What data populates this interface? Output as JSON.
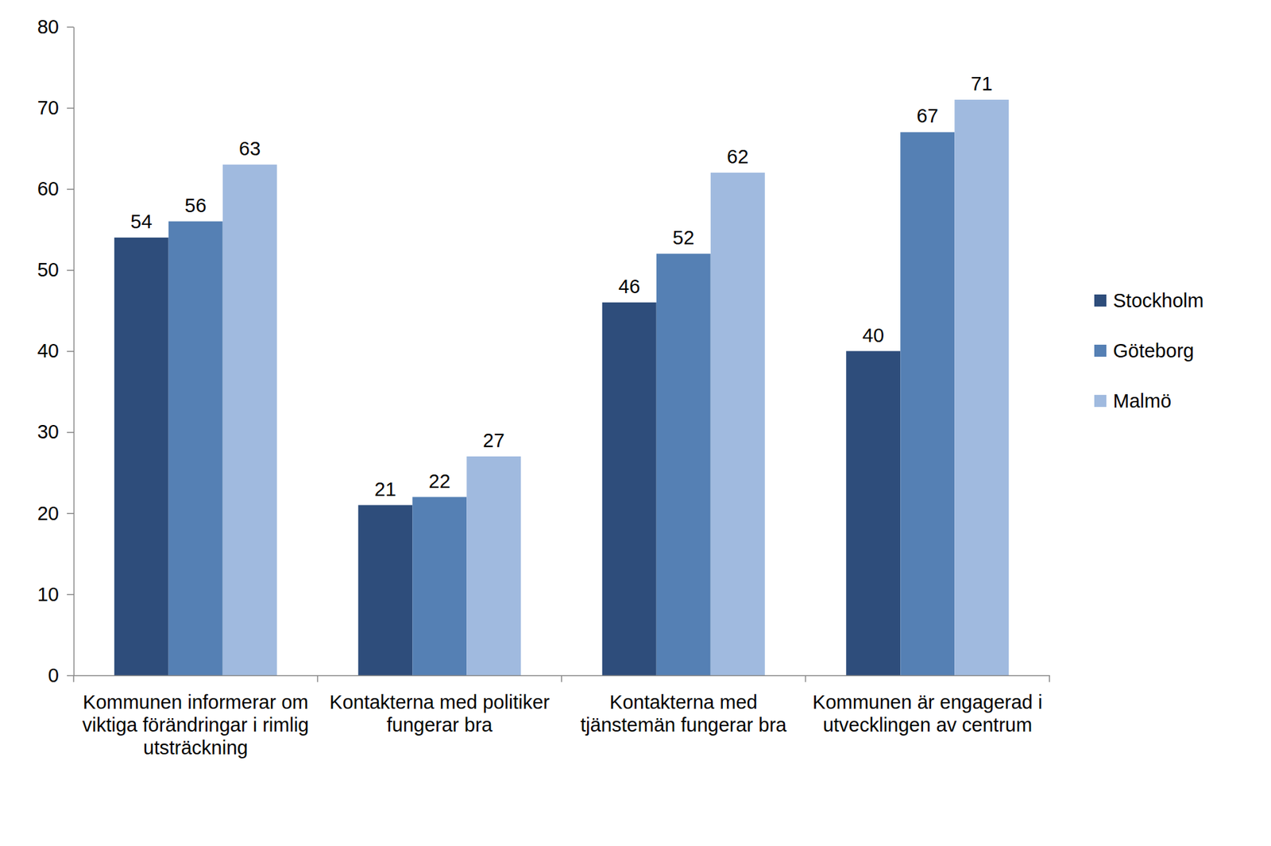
{
  "chart_data": {
    "type": "bar",
    "categories": [
      "Kommunen informerar om viktiga förändringar i rimlig utsträckning",
      "Kontakterna med politiker fungerar bra",
      "Kontakterna med tjänstemän fungerar bra",
      "Kommunen är engagerad i utvecklingen av centrum"
    ],
    "series": [
      {
        "name": "Stockholm",
        "color": "#2E4D7B",
        "values": [
          54,
          21,
          46,
          40
        ]
      },
      {
        "name": "Göteborg",
        "color": "#5580B4",
        "values": [
          56,
          22,
          52,
          67
        ]
      },
      {
        "name": "Malmö",
        "color": "#A0BADF",
        "values": [
          63,
          27,
          62,
          71
        ]
      }
    ],
    "ylim": [
      0,
      80
    ],
    "yticks": [
      0,
      10,
      20,
      30,
      40,
      50,
      60,
      70,
      80
    ],
    "grid": false,
    "legend": "right",
    "data_labels": true
  }
}
